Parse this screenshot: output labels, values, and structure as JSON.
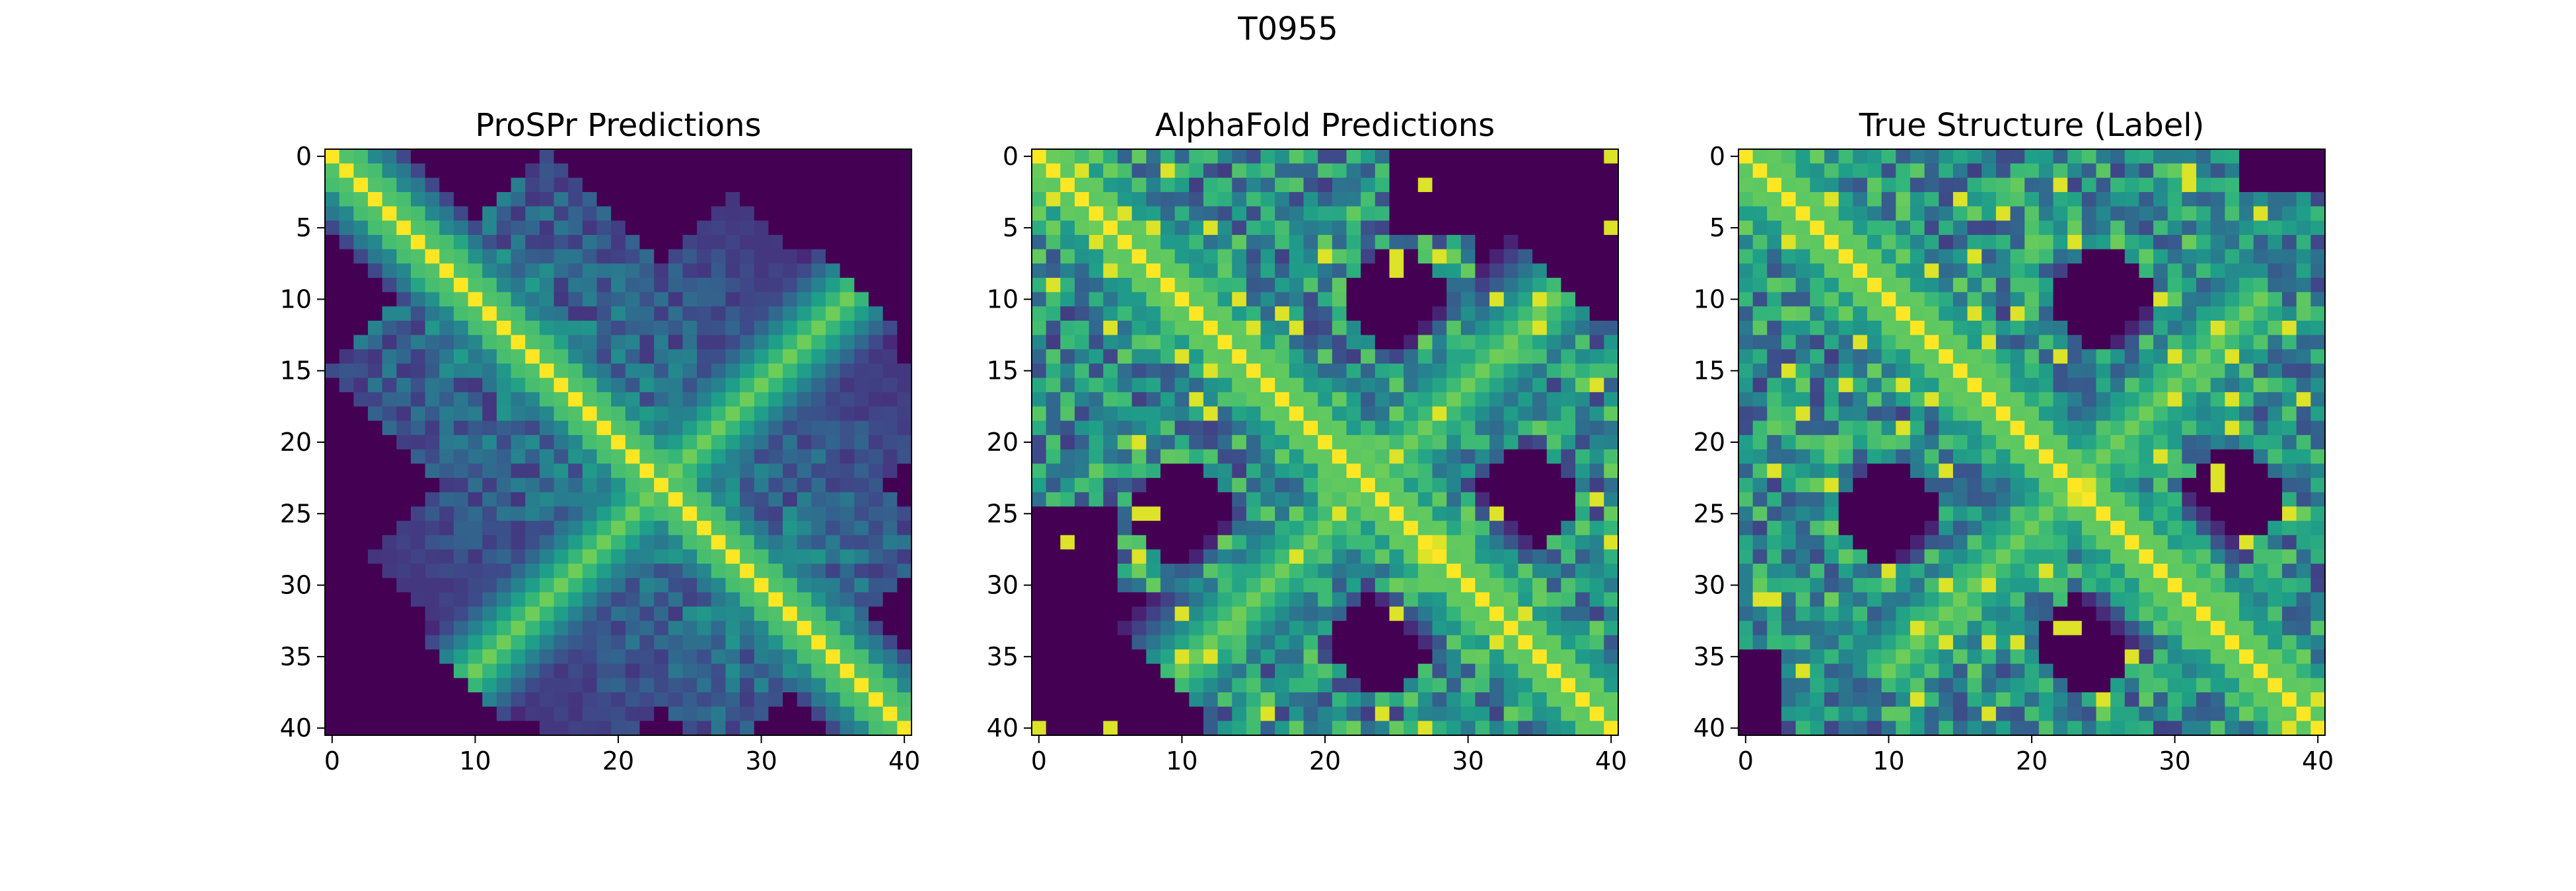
{
  "figure": {
    "title": "T0955"
  },
  "chart_data": [
    {
      "type": "heatmap",
      "title": "ProSPr Predictions",
      "n": 41,
      "xticks": [
        0,
        10,
        20,
        30,
        40
      ],
      "yticks": [
        0,
        5,
        10,
        15,
        20,
        25,
        30,
        35,
        40
      ],
      "colormap": "viridis",
      "x_axis_position": "bottom",
      "y_axis_position": "left",
      "pattern": {
        "diagonal_width": 5.5,
        "anti_diagonal": true,
        "anti_diagonal_width": 3.0,
        "background_region": "upper-right and lower-left corners"
      }
    },
    {
      "type": "heatmap",
      "title": "AlphaFold Predictions",
      "n": 41,
      "xticks": [
        0,
        10,
        20,
        30,
        40
      ],
      "yticks": [
        0,
        5,
        10,
        15,
        20,
        25,
        30,
        35,
        40
      ],
      "colormap": "viridis",
      "x_axis_position": "bottom",
      "y_axis_position": "left",
      "pattern": {
        "diagonal_width": 7.0,
        "anti_diagonal": true,
        "anti_diagonal_width": 3.5,
        "background_region": "upper-right and lower-left corners, holes near (10,25),(25,10),(34,24),(24,34)"
      }
    },
    {
      "type": "heatmap",
      "title": "True Structure (Label)",
      "n": 41,
      "xticks": [
        0,
        10,
        20,
        30,
        40
      ],
      "yticks": [
        0,
        5,
        10,
        15,
        20,
        25,
        30,
        35,
        40
      ],
      "colormap": "viridis",
      "x_axis_position": "bottom",
      "y_axis_position": "left",
      "pattern": {
        "diagonal_width": 7.0,
        "anti_diagonal": true,
        "anti_diagonal_width": 3.5,
        "background_region": "mostly filled; holes near (10,25),(25,10),(34,24),(24,34)"
      }
    }
  ]
}
